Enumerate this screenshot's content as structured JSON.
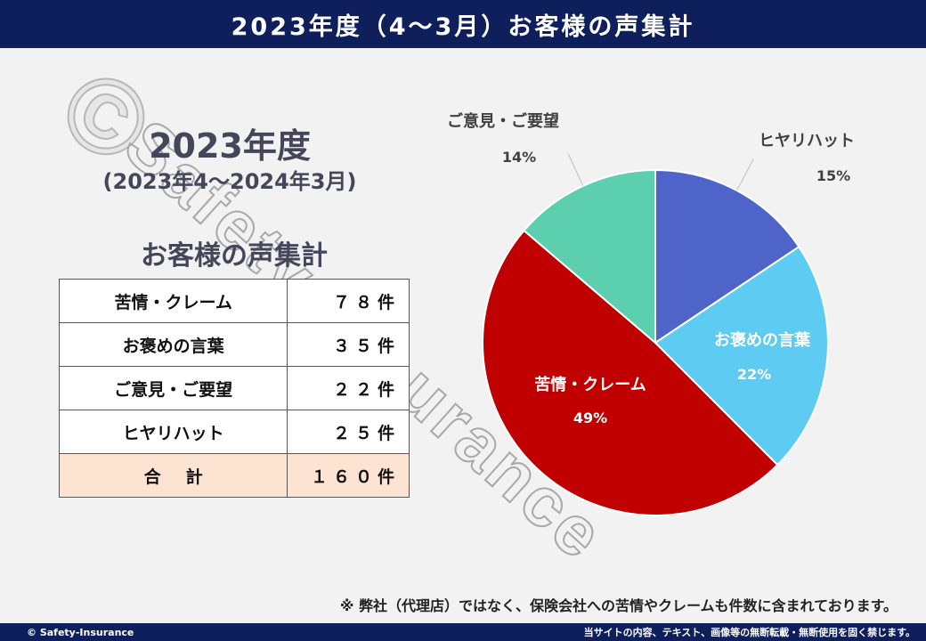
{
  "header": {
    "title": "2023年度（4～3月）お客様の声集計"
  },
  "watermark": {
    "copyright_symbol": "©",
    "text": "Safety-Insurance"
  },
  "left_panel": {
    "fiscal_year": "2023年度",
    "period": "(2023年4～2024年3月)",
    "heading": "お客様の声集計",
    "rows": [
      {
        "category": "苦情・クレーム",
        "count": "７８件"
      },
      {
        "category": "お褒めの言葉",
        "count": "３５件"
      },
      {
        "category": "ご意見・ご要望",
        "count": "２２件"
      },
      {
        "category": "ヒヤリハット",
        "count": "２５件"
      }
    ],
    "total": {
      "label": "合計",
      "count": "１６０件"
    }
  },
  "chart_data": {
    "type": "pie",
    "categories": [
      "ヒヤリハット",
      "お褒めの言葉",
      "苦情・クレーム",
      "ご意見・ご要望"
    ],
    "values": [
      25,
      35,
      78,
      22
    ],
    "percent_labels": [
      "15%",
      "22%",
      "49%",
      "14%"
    ],
    "colors": [
      "#4e64c8",
      "#5ecbf2",
      "#c00000",
      "#5ccfaf"
    ],
    "start_angle_deg": 0,
    "direction": "clockwise"
  },
  "footnote": "※ 弊社（代理店）ではなく、保険会社への苦情やクレームも件数に含まれております。",
  "footer": {
    "copyright": "© Safety-Insurance",
    "notice": "当サイトの内容、テキスト、画像等の無断転載・無断使用を固く禁じます。"
  }
}
